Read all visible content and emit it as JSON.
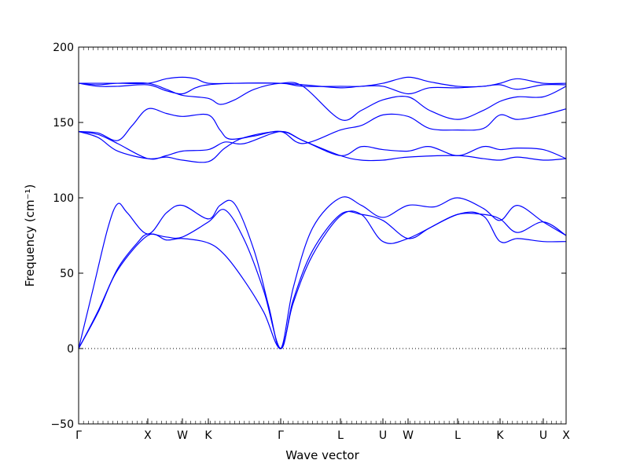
{
  "chart_data": {
    "type": "line",
    "title": "",
    "xlabel": "Wave vector",
    "ylabel": "Frequency (cm⁻¹)",
    "ylim": [
      -50,
      200
    ],
    "xlim": [
      0,
      1
    ],
    "yticks": [
      -50,
      0,
      50,
      100,
      150,
      200
    ],
    "high_symmetry_points": [
      {
        "label": "Γ",
        "x": 0.0
      },
      {
        "label": "X",
        "x": 0.1419
      },
      {
        "label": "W",
        "x": 0.2129
      },
      {
        "label": "K",
        "x": 0.2661
      },
      {
        "label": "Γ",
        "x": 0.4145
      },
      {
        "label": "L",
        "x": 0.5371
      },
      {
        "label": "U",
        "x": 0.6242
      },
      {
        "label": "W",
        "x": 0.6758
      },
      {
        "label": "L",
        "x": 0.7774
      },
      {
        "label": "K",
        "x": 0.8645
      },
      {
        "label": "U",
        "x": 0.9532
      },
      {
        "label": "X",
        "x": 1.0
      }
    ],
    "zero_line": {
      "y": 0,
      "style": "dotted"
    },
    "line_color": "#0000ff",
    "series": [
      {
        "points": [
          [
            0,
            0
          ],
          [
            0.04,
            24
          ],
          [
            0.08,
            52
          ],
          [
            0.1419,
            75
          ],
          [
            0.18,
            72
          ],
          [
            0.2129,
            73
          ],
          [
            0.2661,
            70
          ],
          [
            0.3,
            62
          ],
          [
            0.34,
            45
          ],
          [
            0.38,
            24
          ],
          [
            0.4145,
            0
          ],
          [
            0.44,
            30
          ],
          [
            0.48,
            62
          ],
          [
            0.5371,
            88
          ],
          [
            0.58,
            89
          ],
          [
            0.6242,
            71
          ],
          [
            0.6758,
            73
          ],
          [
            0.7774,
            89
          ],
          [
            0.83,
            88
          ],
          [
            0.8645,
            71
          ],
          [
            0.9,
            73
          ],
          [
            0.9532,
            71
          ],
          [
            1.0,
            71
          ]
        ]
      },
      {
        "points": [
          [
            0,
            0
          ],
          [
            0.04,
            25
          ],
          [
            0.08,
            53
          ],
          [
            0.12,
            70
          ],
          [
            0.1419,
            76
          ],
          [
            0.18,
            74
          ],
          [
            0.2129,
            74
          ],
          [
            0.2661,
            84
          ],
          [
            0.3,
            92
          ],
          [
            0.34,
            72
          ],
          [
            0.38,
            38
          ],
          [
            0.4145,
            0
          ],
          [
            0.44,
            32
          ],
          [
            0.48,
            65
          ],
          [
            0.5371,
            89
          ],
          [
            0.58,
            89
          ],
          [
            0.6242,
            85
          ],
          [
            0.6758,
            73
          ],
          [
            0.72,
            80
          ],
          [
            0.7774,
            89
          ],
          [
            0.83,
            89
          ],
          [
            0.8645,
            86
          ],
          [
            0.9,
            77
          ],
          [
            0.9532,
            84
          ],
          [
            1.0,
            75
          ]
        ]
      },
      {
        "points": [
          [
            0,
            0
          ],
          [
            0.03,
            40
          ],
          [
            0.06,
            80
          ],
          [
            0.08,
            96
          ],
          [
            0.1,
            90
          ],
          [
            0.1419,
            76
          ],
          [
            0.18,
            90
          ],
          [
            0.2129,
            95
          ],
          [
            0.2661,
            86
          ],
          [
            0.29,
            95
          ],
          [
            0.32,
            96
          ],
          [
            0.36,
            65
          ],
          [
            0.39,
            28
          ],
          [
            0.4145,
            0
          ],
          [
            0.44,
            40
          ],
          [
            0.48,
            80
          ],
          [
            0.5371,
            100
          ],
          [
            0.58,
            95
          ],
          [
            0.6242,
            87
          ],
          [
            0.6758,
            95
          ],
          [
            0.73,
            94
          ],
          [
            0.7774,
            100
          ],
          [
            0.83,
            93
          ],
          [
            0.8645,
            85
          ],
          [
            0.9,
            95
          ],
          [
            0.9532,
            84
          ],
          [
            1.0,
            75
          ]
        ]
      },
      {
        "points": [
          [
            0,
            144
          ],
          [
            0.04,
            140
          ],
          [
            0.08,
            131
          ],
          [
            0.1419,
            126
          ],
          [
            0.18,
            127
          ],
          [
            0.2129,
            125
          ],
          [
            0.2661,
            124
          ],
          [
            0.3,
            133
          ],
          [
            0.34,
            140
          ],
          [
            0.4145,
            144
          ],
          [
            0.46,
            138
          ],
          [
            0.5371,
            128
          ],
          [
            0.58,
            125
          ],
          [
            0.6242,
            125
          ],
          [
            0.6758,
            127
          ],
          [
            0.7774,
            128
          ],
          [
            0.83,
            126
          ],
          [
            0.8645,
            125
          ],
          [
            0.9,
            127
          ],
          [
            0.9532,
            125
          ],
          [
            1.0,
            126
          ]
        ]
      },
      {
        "points": [
          [
            0,
            144
          ],
          [
            0.04,
            142
          ],
          [
            0.08,
            136
          ],
          [
            0.1419,
            126
          ],
          [
            0.18,
            128
          ],
          [
            0.2129,
            131
          ],
          [
            0.2661,
            132
          ],
          [
            0.3,
            137
          ],
          [
            0.34,
            136
          ],
          [
            0.4145,
            144
          ],
          [
            0.46,
            138
          ],
          [
            0.5371,
            128
          ],
          [
            0.58,
            134
          ],
          [
            0.6242,
            132
          ],
          [
            0.6758,
            131
          ],
          [
            0.72,
            134
          ],
          [
            0.7774,
            128
          ],
          [
            0.83,
            134
          ],
          [
            0.8645,
            132
          ],
          [
            0.9,
            133
          ],
          [
            0.9532,
            132
          ],
          [
            1.0,
            126
          ]
        ]
      },
      {
        "points": [
          [
            0,
            144
          ],
          [
            0.04,
            143
          ],
          [
            0.08,
            138
          ],
          [
            0.11,
            148
          ],
          [
            0.1419,
            159
          ],
          [
            0.18,
            156
          ],
          [
            0.2129,
            154
          ],
          [
            0.2661,
            155
          ],
          [
            0.29,
            145
          ],
          [
            0.31,
            139
          ],
          [
            0.36,
            141
          ],
          [
            0.4145,
            144
          ],
          [
            0.46,
            136
          ],
          [
            0.5371,
            145
          ],
          [
            0.58,
            148
          ],
          [
            0.6242,
            155
          ],
          [
            0.6758,
            154
          ],
          [
            0.72,
            146
          ],
          [
            0.7774,
            145
          ],
          [
            0.83,
            146
          ],
          [
            0.8645,
            155
          ],
          [
            0.9,
            152
          ],
          [
            0.9532,
            155
          ],
          [
            1.0,
            159
          ]
        ]
      },
      {
        "points": [
          [
            0,
            176
          ],
          [
            0.04,
            175
          ],
          [
            0.08,
            176
          ],
          [
            0.1419,
            176
          ],
          [
            0.18,
            172
          ],
          [
            0.2129,
            168
          ],
          [
            0.2661,
            166
          ],
          [
            0.29,
            162
          ],
          [
            0.32,
            165
          ],
          [
            0.36,
            172
          ],
          [
            0.4145,
            176
          ],
          [
            0.46,
            174
          ],
          [
            0.5371,
            152
          ],
          [
            0.58,
            158
          ],
          [
            0.6242,
            165
          ],
          [
            0.6758,
            167
          ],
          [
            0.72,
            158
          ],
          [
            0.7774,
            152
          ],
          [
            0.83,
            158
          ],
          [
            0.8645,
            164
          ],
          [
            0.9,
            167
          ],
          [
            0.9532,
            167
          ],
          [
            1.0,
            174
          ]
        ]
      },
      {
        "points": [
          [
            0,
            176
          ],
          [
            0.04,
            174
          ],
          [
            0.08,
            174
          ],
          [
            0.1419,
            175
          ],
          [
            0.18,
            171
          ],
          [
            0.2129,
            169
          ],
          [
            0.24,
            173
          ],
          [
            0.2661,
            175
          ],
          [
            0.32,
            176
          ],
          [
            0.4145,
            176
          ],
          [
            0.46,
            175
          ],
          [
            0.5371,
            173
          ],
          [
            0.58,
            174
          ],
          [
            0.6242,
            174
          ],
          [
            0.6758,
            169
          ],
          [
            0.72,
            173
          ],
          [
            0.7774,
            173
          ],
          [
            0.83,
            174
          ],
          [
            0.8645,
            175
          ],
          [
            0.9,
            172
          ],
          [
            0.9532,
            175
          ],
          [
            1.0,
            175
          ]
        ]
      },
      {
        "points": [
          [
            0,
            176
          ],
          [
            0.04,
            176
          ],
          [
            0.08,
            176
          ],
          [
            0.1419,
            176
          ],
          [
            0.18,
            179
          ],
          [
            0.2129,
            180
          ],
          [
            0.24,
            179
          ],
          [
            0.2661,
            176
          ],
          [
            0.32,
            176
          ],
          [
            0.4145,
            176
          ],
          [
            0.46,
            174
          ],
          [
            0.5371,
            174
          ],
          [
            0.58,
            174
          ],
          [
            0.6242,
            176
          ],
          [
            0.6758,
            180
          ],
          [
            0.72,
            177
          ],
          [
            0.7774,
            174
          ],
          [
            0.83,
            174
          ],
          [
            0.8645,
            176
          ],
          [
            0.9,
            179
          ],
          [
            0.9532,
            176
          ],
          [
            1.0,
            176
          ]
        ]
      }
    ]
  }
}
